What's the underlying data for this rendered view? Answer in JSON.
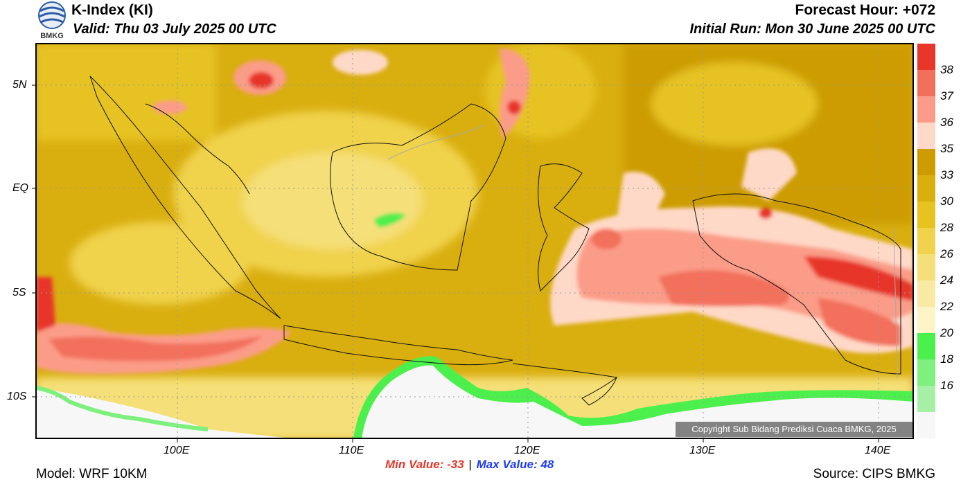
{
  "header": {
    "title": "K-Index (KI)",
    "valid": "Valid: Thu 03 July 2025 00 UTC",
    "forecast_hour": "Forecast Hour: +072",
    "initial_run": "Initial Run: Mon 30 June 2025 00 UTC",
    "logo_text": "BMKG"
  },
  "axes": {
    "lat_labels": [
      "5N",
      "EQ",
      "5S",
      "10S"
    ],
    "lon_labels": [
      "100E",
      "110E",
      "120E",
      "130E",
      "140E"
    ]
  },
  "colorbar": {
    "levels": [
      "38",
      "37",
      "36",
      "35",
      "33",
      "30",
      "28",
      "26",
      "24",
      "22",
      "20",
      "18",
      "16"
    ],
    "colors": [
      "#e8362a",
      "#f2705b",
      "#fb9c88",
      "#ffd9c8",
      "#cc9c00",
      "#d9ae0f",
      "#e6c320",
      "#f0d24c",
      "#f5df78",
      "#f8e9a4",
      "#fdf4c8",
      "#4cf04c",
      "#7df07d",
      "#a6f0a6",
      "#f7f7f7"
    ]
  },
  "stats": {
    "min_label": "Min Value: -33",
    "separator": "|",
    "max_label": "Max Value:  48",
    "min_color": "#e8362a",
    "max_color": "#1e3cf0"
  },
  "footer": {
    "model": "Model: WRF 10KM",
    "source": "Source: CIPS BMKG",
    "copyright": "Copyright Sub Bidang Prediksi Cuaca BMKG, 2025"
  }
}
